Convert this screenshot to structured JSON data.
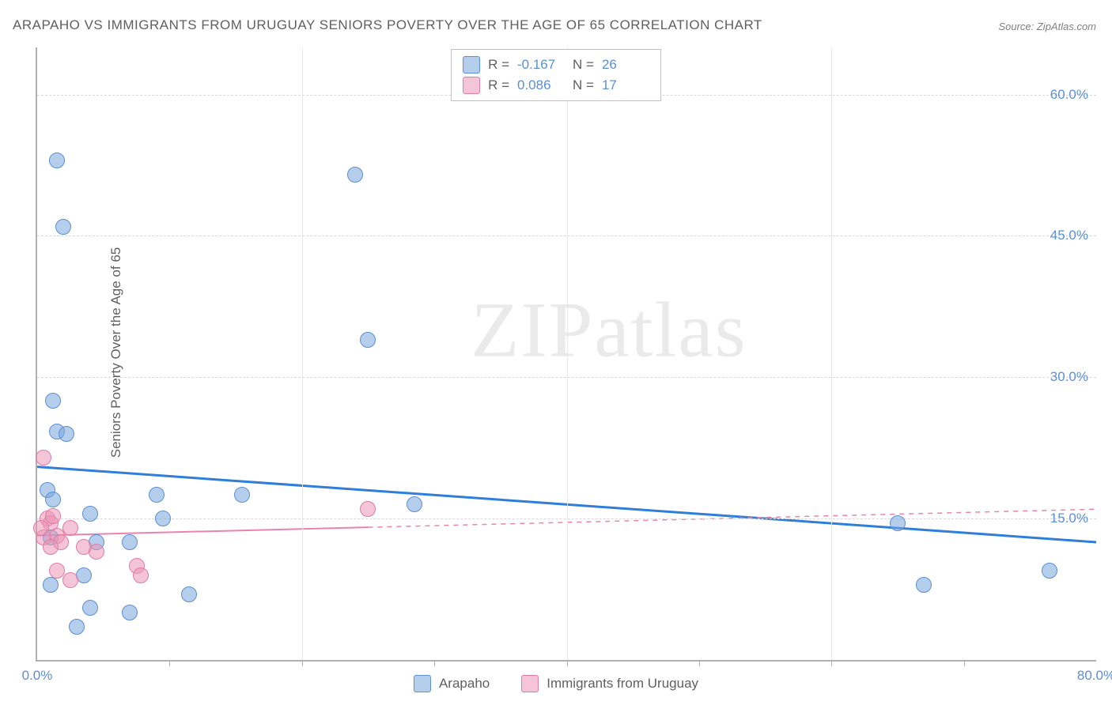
{
  "title": "ARAPAHO VS IMMIGRANTS FROM URUGUAY SENIORS POVERTY OVER THE AGE OF 65 CORRELATION CHART",
  "source": "Source: ZipAtlas.com",
  "watermark_a": "ZIP",
  "watermark_b": "atlas",
  "ylabel": "Seniors Poverty Over the Age of 65",
  "chart": {
    "type": "scatter",
    "xlim": [
      0,
      80
    ],
    "ylim": [
      0,
      65
    ],
    "xtick_labels": [
      "0.0%",
      "80.0%"
    ],
    "xtick_positions": [
      0,
      80
    ],
    "xtick_minor": [
      10,
      20,
      30,
      40,
      50,
      60,
      70
    ],
    "ytick_labels": [
      "15.0%",
      "30.0%",
      "45.0%",
      "60.0%"
    ],
    "ytick_positions": [
      15,
      30,
      45,
      60
    ],
    "grid_color": "#d8d8d8",
    "axis_color": "#b0b0b0",
    "background": "#ffffff",
    "marker_size": 20,
    "series": [
      {
        "name": "Arapaho",
        "color_fill": "rgba(120,165,220,0.55)",
        "color_stroke": "#5b8fd6",
        "trend": {
          "x1": 0,
          "y1": 20.5,
          "x2": 80,
          "y2": 12.5,
          "solid_until_x": 80
        },
        "R": "-0.167",
        "N": "26",
        "points": [
          [
            1.5,
            53.0
          ],
          [
            2.0,
            46.0
          ],
          [
            24.0,
            51.5
          ],
          [
            25.0,
            34.0
          ],
          [
            1.2,
            27.5
          ],
          [
            1.5,
            24.2
          ],
          [
            2.2,
            24.0
          ],
          [
            0.8,
            18.0
          ],
          [
            1.2,
            17.0
          ],
          [
            9.0,
            17.5
          ],
          [
            15.5,
            17.5
          ],
          [
            28.5,
            16.5
          ],
          [
            4.0,
            15.5
          ],
          [
            9.5,
            15.0
          ],
          [
            65.0,
            14.5
          ],
          [
            4.5,
            12.5
          ],
          [
            7.0,
            12.5
          ],
          [
            3.5,
            9.0
          ],
          [
            11.5,
            7.0
          ],
          [
            4.0,
            5.5
          ],
          [
            7.0,
            5.0
          ],
          [
            3.0,
            3.5
          ],
          [
            67.0,
            8.0
          ],
          [
            76.5,
            9.5
          ],
          [
            1.0,
            13.0
          ],
          [
            1.0,
            8.0
          ]
        ]
      },
      {
        "name": "Immigrants from Uruguay",
        "color_fill": "rgba(235,150,180,0.55)",
        "color_stroke": "#e07ba5",
        "trend": {
          "x1": 0,
          "y1": 13.2,
          "x2": 80,
          "y2": 16.0,
          "solid_until_x": 25
        },
        "R": "0.086",
        "N": "17",
        "points": [
          [
            0.5,
            21.5
          ],
          [
            0.8,
            15.0
          ],
          [
            1.0,
            14.5
          ],
          [
            1.2,
            15.3
          ],
          [
            0.5,
            13.0
          ],
          [
            1.5,
            13.2
          ],
          [
            1.8,
            12.5
          ],
          [
            1.0,
            12.0
          ],
          [
            2.5,
            14.0
          ],
          [
            3.5,
            12.0
          ],
          [
            4.5,
            11.5
          ],
          [
            1.5,
            9.5
          ],
          [
            2.5,
            8.5
          ],
          [
            7.5,
            10.0
          ],
          [
            7.8,
            9.0
          ],
          [
            25.0,
            16.0
          ],
          [
            0.3,
            14.0
          ]
        ]
      }
    ]
  },
  "legend_top": {
    "rows": [
      {
        "swatch": "blue",
        "r_label": "R =",
        "r_val": "-0.167",
        "n_label": "N =",
        "n_val": "26"
      },
      {
        "swatch": "pink",
        "r_label": "R =",
        "r_val": "0.086",
        "n_label": "N =",
        "n_val": "17"
      }
    ]
  },
  "legend_bottom": {
    "items": [
      {
        "swatch": "blue",
        "label": "Arapaho"
      },
      {
        "swatch": "pink",
        "label": "Immigrants from Uruguay"
      }
    ]
  }
}
